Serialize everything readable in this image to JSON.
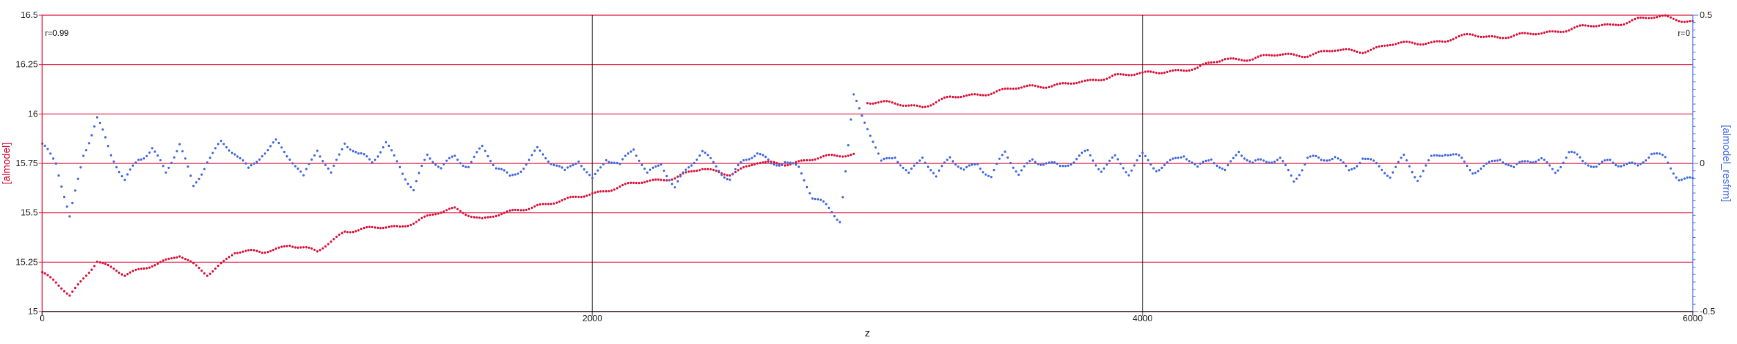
{
  "chart_data": {
    "type": "scatter",
    "title": "",
    "xlabel": "z",
    "ylabel_left": "[almodel]",
    "ylabel_right": "[almodel_resfrm]",
    "xlim": [
      0,
      6000
    ],
    "ylim_left": [
      15,
      16.5
    ],
    "ylim_right": [
      -0.5,
      0.5
    ],
    "x_ticks": [
      0,
      2000,
      4000,
      6000
    ],
    "x_tick_labels": [
      "0",
      "2000",
      "4000",
      "6000"
    ],
    "y_ticks_left": [
      15,
      15.25,
      15.5,
      15.75,
      16,
      16.25,
      16.5
    ],
    "y_tick_labels_left": [
      "15",
      "15.25",
      "15.5",
      "15.75",
      "16",
      "16.25",
      "16.5"
    ],
    "y_ticks_right": [
      -0.5,
      0,
      0.5
    ],
    "y_tick_labels_right": [
      "-0.5",
      "0",
      "0.5"
    ],
    "annotations": {
      "left": "r=0.99",
      "right": "r=0"
    },
    "grid": {
      "horizontal": true,
      "vertical_at": [
        2000,
        4000
      ]
    },
    "colors": {
      "model": "#dc143c",
      "residual": "#4169e1",
      "grid_horizontal": "#dc143c",
      "grid_vertical": "#000000",
      "right_axis": "#4169e1",
      "left_axis": "#dc143c"
    },
    "series": [
      {
        "axis": "left",
        "x": [
          0,
          100,
          200,
          300,
          400,
          500,
          600,
          700,
          800,
          900,
          1000,
          1100,
          1200,
          1300,
          1400,
          1500,
          1600,
          1700,
          1800,
          1900,
          2000,
          2100,
          2200,
          2300,
          2400,
          2500,
          2600,
          2700,
          2800,
          2950,
          3000,
          3100,
          3200,
          3300,
          3400,
          3500,
          3600,
          3700,
          3800,
          3900,
          4000,
          4100,
          4200,
          4300,
          4400,
          4500,
          4600,
          4700,
          4800,
          4900,
          5000,
          5100,
          5200,
          5300,
          5400,
          5500,
          5600,
          5700,
          5800,
          5900,
          6000
        ],
        "y": [
          15.2,
          15.08,
          15.26,
          15.18,
          15.24,
          15.28,
          15.19,
          15.3,
          15.3,
          15.34,
          15.3,
          15.41,
          15.42,
          15.43,
          15.48,
          15.52,
          15.47,
          15.5,
          15.54,
          15.56,
          15.6,
          15.63,
          15.66,
          15.68,
          15.72,
          15.7,
          15.75,
          15.75,
          15.77,
          15.8,
          16.06,
          16.05,
          16.04,
          16.08,
          16.1,
          16.12,
          16.14,
          16.15,
          16.16,
          16.2,
          16.2,
          16.22,
          16.23,
          16.28,
          16.28,
          16.3,
          16.3,
          16.32,
          16.32,
          16.35,
          16.36,
          16.37,
          16.4,
          16.39,
          16.4,
          16.42,
          16.44,
          16.45,
          16.48,
          16.49,
          16.47
        ]
      },
      {
        "axis": "right",
        "x": [
          0,
          50,
          100,
          150,
          200,
          250,
          300,
          350,
          400,
          450,
          500,
          550,
          600,
          650,
          700,
          750,
          800,
          850,
          900,
          950,
          1000,
          1050,
          1100,
          1150,
          1200,
          1250,
          1300,
          1350,
          1400,
          1450,
          1500,
          1550,
          1600,
          1650,
          1700,
          1750,
          1800,
          1850,
          1900,
          1950,
          2000,
          2050,
          2100,
          2150,
          2200,
          2250,
          2300,
          2350,
          2400,
          2450,
          2500,
          2550,
          2600,
          2650,
          2700,
          2750,
          2800,
          2850,
          2900,
          2950,
          3000,
          3050,
          3100,
          3150,
          3200,
          3250,
          3300,
          3350,
          3400,
          3450,
          3500,
          3550,
          3600,
          3650,
          3700,
          3750,
          3800,
          3850,
          3900,
          3950,
          4000,
          4050,
          4100,
          4150,
          4200,
          4250,
          4300,
          4350,
          4400,
          4450,
          4500,
          4550,
          4600,
          4650,
          4700,
          4750,
          4800,
          4850,
          4900,
          4950,
          5000,
          5050,
          5100,
          5150,
          5200,
          5250,
          5300,
          5350,
          5400,
          5450,
          5500,
          5550,
          5600,
          5650,
          5700,
          5750,
          5800,
          5850,
          5900,
          5950,
          6000
        ],
        "y": [
          0.05,
          0.0,
          -0.18,
          0.04,
          0.15,
          0.02,
          -0.06,
          0.02,
          0.06,
          -0.04,
          0.06,
          -0.08,
          0.02,
          0.07,
          0.03,
          -0.03,
          0.04,
          0.08,
          0.02,
          -0.06,
          0.05,
          -0.03,
          0.08,
          0.02,
          0.0,
          0.07,
          0.0,
          -0.09,
          0.02,
          -0.02,
          0.03,
          0.0,
          0.05,
          -0.02,
          -0.05,
          0.0,
          0.05,
          0.0,
          -0.04,
          0.02,
          -0.05,
          0.02,
          -0.02,
          0.05,
          -0.03,
          0.01,
          -0.09,
          -0.02,
          0.04,
          0.0,
          -0.05,
          0.0,
          0.03,
          0.0,
          0.02,
          -0.02,
          -0.12,
          -0.15,
          -0.18,
          0.23,
          0.12,
          -0.01,
          0.03,
          -0.03,
          0.03,
          -0.06,
          0.02,
          -0.02,
          0.01,
          -0.05,
          0.03,
          -0.04,
          0.02,
          0.01,
          -0.02,
          0.0,
          0.04,
          -0.01,
          0.02,
          -0.04,
          0.02,
          -0.01,
          0.01,
          0.03,
          -0.03,
          0.02,
          -0.02,
          0.05,
          -0.01,
          0.0,
          0.02,
          -0.05,
          0.02,
          0.0,
          0.02,
          -0.02,
          0.03,
          -0.01,
          -0.05,
          0.02,
          -0.04,
          0.02,
          0.03,
          0.01,
          -0.02,
          0.0,
          0.02,
          -0.03,
          0.01,
          0.02,
          -0.02,
          0.03,
          0.0,
          -0.01,
          0.02,
          0.0,
          -0.02,
          0.03,
          0.02,
          -0.04,
          -0.06
        ]
      }
    ]
  }
}
